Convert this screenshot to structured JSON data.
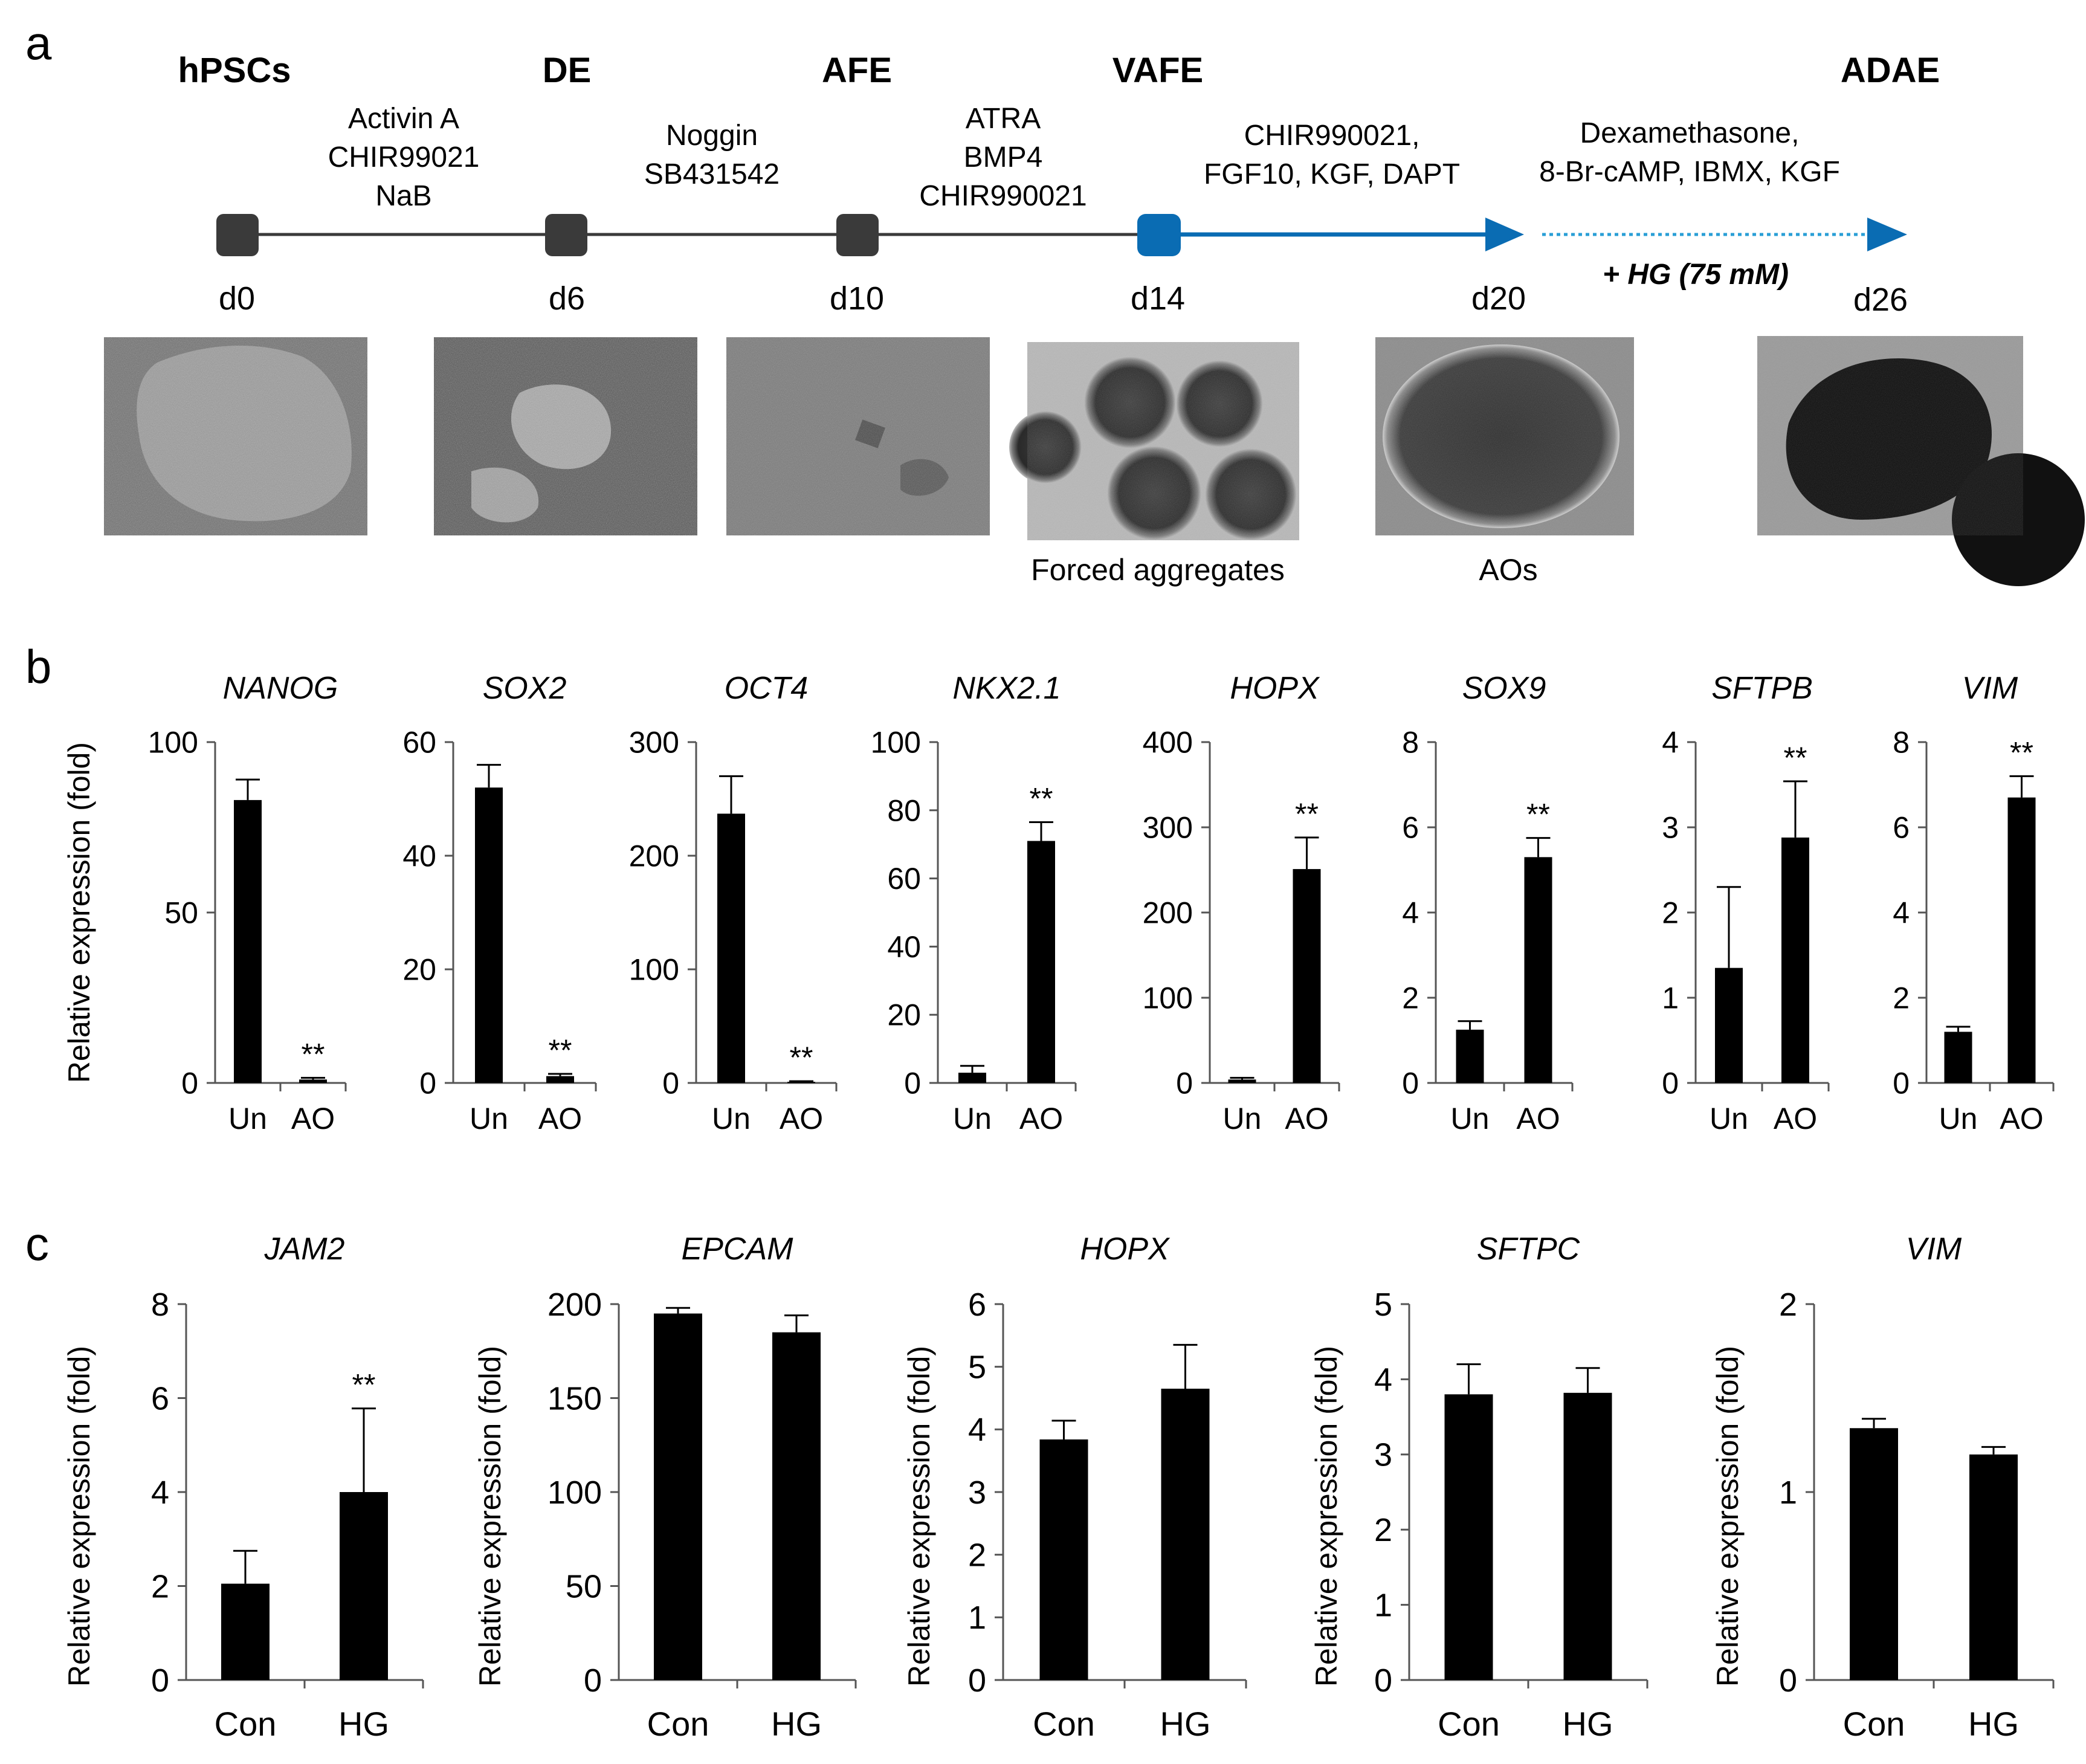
{
  "panel_a": {
    "letter": "a",
    "stages": [
      "hPSCs",
      "DE",
      "AFE",
      "VAFE",
      "ADAE"
    ],
    "days": [
      "d0",
      "d6",
      "d10",
      "d14",
      "d20",
      "d26"
    ],
    "factors": [
      [
        "Activin A",
        "CHIR99021",
        "NaB"
      ],
      [
        "Noggin",
        "SB431542"
      ],
      [
        "ATRA",
        "BMP4",
        "CHIR990021"
      ],
      [
        "CHIR990021,",
        "FGF10, KGF, DAPT"
      ],
      [
        "Dexamethasone,",
        "8-Br-cAMP, IBMX, KGF"
      ]
    ],
    "hg_label": "+ HG (75 mM)",
    "image_captions": [
      "Forced aggregates",
      "AOs"
    ],
    "colors": {
      "node": "#3a3a3a",
      "timeline": "#3a3a3a",
      "arrow": "#0a6cb3",
      "dotted": "#2a9fd6"
    }
  },
  "chart_data": [
    {
      "panel": "b",
      "type": "bar",
      "title": "NANOG",
      "ylabel": "Relative expression (fold)",
      "categories": [
        "Un",
        "AO"
      ],
      "values": [
        83,
        1
      ],
      "errors": [
        6,
        0.5
      ],
      "ylim": [
        0,
        100
      ],
      "yticks": [
        0,
        50,
        100
      ],
      "sig": [
        "",
        "**"
      ]
    },
    {
      "panel": "b",
      "type": "bar",
      "title": "SOX2",
      "ylabel": "",
      "categories": [
        "Un",
        "AO"
      ],
      "values": [
        52,
        1.2
      ],
      "errors": [
        4,
        0.4
      ],
      "ylim": [
        0,
        60
      ],
      "yticks": [
        0,
        20,
        40,
        60
      ],
      "sig": [
        "",
        "**"
      ]
    },
    {
      "panel": "b",
      "type": "bar",
      "title": "OCT4",
      "ylabel": "",
      "categories": [
        "Un",
        "AO"
      ],
      "values": [
        237,
        1
      ],
      "errors": [
        33,
        0.5
      ],
      "ylim": [
        0,
        300
      ],
      "yticks": [
        0,
        100,
        200,
        300
      ],
      "sig": [
        "",
        "**"
      ]
    },
    {
      "panel": "b",
      "type": "bar",
      "title": "NKX2.1",
      "ylabel": "",
      "categories": [
        "Un",
        "AO"
      ],
      "values": [
        3,
        71
      ],
      "errors": [
        2,
        5.5
      ],
      "ylim": [
        0,
        100
      ],
      "yticks": [
        0,
        20,
        40,
        60,
        80,
        100
      ],
      "sig": [
        "",
        "**"
      ]
    },
    {
      "panel": "b",
      "type": "bar",
      "title": "HOPX",
      "ylabel": "",
      "categories": [
        "Un",
        "AO"
      ],
      "values": [
        4,
        251
      ],
      "errors": [
        2,
        37
      ],
      "ylim": [
        0,
        400
      ],
      "yticks": [
        0,
        100,
        200,
        300,
        400
      ],
      "sig": [
        "",
        "**"
      ]
    },
    {
      "panel": "b",
      "type": "bar",
      "title": "SOX9",
      "ylabel": "",
      "categories": [
        "Un",
        "AO"
      ],
      "values": [
        1.25,
        5.3
      ],
      "errors": [
        0.2,
        0.45
      ],
      "ylim": [
        0,
        8
      ],
      "yticks": [
        0,
        2,
        4,
        6,
        8
      ],
      "sig": [
        "",
        "**"
      ]
    },
    {
      "panel": "b",
      "type": "bar",
      "title": "SFTPB",
      "ylabel": "",
      "categories": [
        "Un",
        "AO"
      ],
      "values": [
        1.35,
        2.88
      ],
      "errors": [
        0.95,
        0.66
      ],
      "ylim": [
        0,
        4
      ],
      "yticks": [
        0,
        1,
        2,
        3,
        4
      ],
      "sig": [
        "",
        "**"
      ]
    },
    {
      "panel": "b",
      "type": "bar",
      "title": "VIM",
      "ylabel": "",
      "categories": [
        "Un",
        "AO"
      ],
      "values": [
        1.2,
        6.7
      ],
      "errors": [
        0.12,
        0.5
      ],
      "ylim": [
        0,
        8
      ],
      "yticks": [
        0,
        2,
        4,
        6,
        8
      ],
      "sig": [
        "",
        "**"
      ]
    },
    {
      "panel": "c",
      "type": "bar",
      "title": "JAM2",
      "ylabel": "Relative expression (fold)",
      "categories": [
        "Con",
        "HG"
      ],
      "values": [
        2.05,
        4.0
      ],
      "errors": [
        0.7,
        1.78
      ],
      "ylim": [
        0,
        8
      ],
      "yticks": [
        0,
        2,
        4,
        6,
        8
      ],
      "sig": [
        "",
        "**"
      ]
    },
    {
      "panel": "c",
      "type": "bar",
      "title": "EPCAM",
      "ylabel": "Relative expression (fold)",
      "categories": [
        "Con",
        "HG"
      ],
      "values": [
        195,
        185
      ],
      "errors": [
        3,
        9
      ],
      "ylim": [
        0,
        200
      ],
      "yticks": [
        0,
        50,
        100,
        150,
        200
      ],
      "sig": [
        "",
        ""
      ]
    },
    {
      "panel": "c",
      "type": "bar",
      "title": "HOPX",
      "ylabel": "Relative expression (fold)",
      "categories": [
        "Con",
        "HG"
      ],
      "values": [
        3.84,
        4.65
      ],
      "errors": [
        0.3,
        0.7
      ],
      "ylim": [
        0,
        6
      ],
      "yticks": [
        0,
        1,
        2,
        3,
        4,
        5,
        6
      ],
      "sig": [
        "",
        ""
      ]
    },
    {
      "panel": "c",
      "type": "bar",
      "title": "SFTPC",
      "ylabel": "Relative expression (fold)",
      "categories": [
        "Con",
        "HG"
      ],
      "values": [
        3.8,
        3.82
      ],
      "errors": [
        0.4,
        0.33
      ],
      "ylim": [
        0,
        5
      ],
      "yticks": [
        0,
        1,
        2,
        3,
        4,
        5
      ],
      "sig": [
        "",
        ""
      ]
    },
    {
      "panel": "c",
      "type": "bar",
      "title": "VIM",
      "ylabel": "Relative expression (fold)",
      "categories": [
        "Con",
        "HG"
      ],
      "values": [
        1.34,
        1.2
      ],
      "errors": [
        0.05,
        0.04
      ],
      "ylim": [
        0,
        2
      ],
      "yticks": [
        0,
        1,
        2
      ],
      "sig": [
        "",
        ""
      ]
    }
  ],
  "panel_letters": [
    "b",
    "c"
  ]
}
